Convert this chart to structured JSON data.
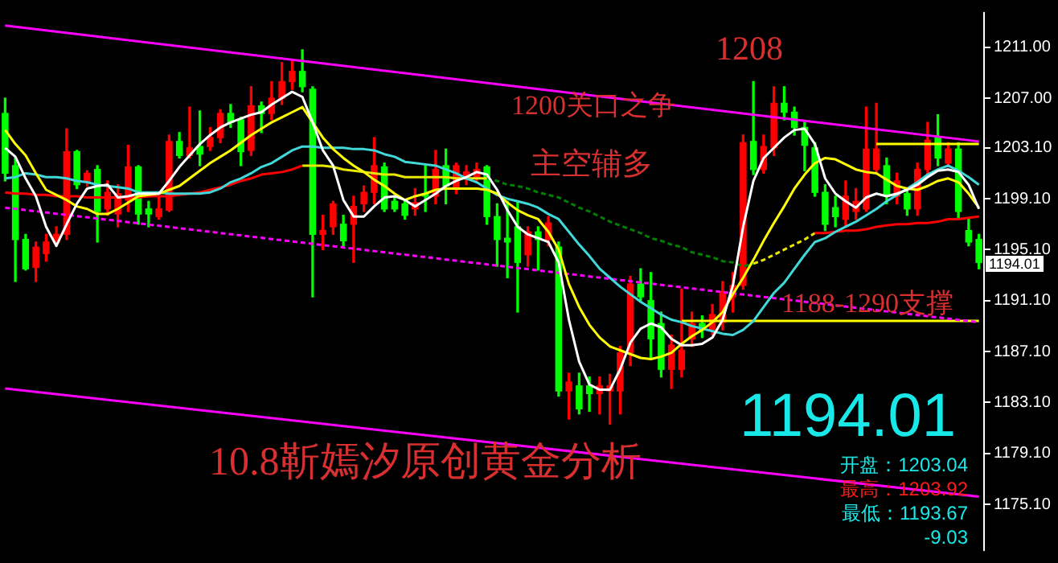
{
  "chart_data": {
    "type": "candlestick",
    "categories": [
      null,
      null,
      null,
      null,
      null,
      null,
      null,
      null,
      null,
      null,
      null,
      null,
      null,
      null,
      null,
      null,
      null,
      null,
      null,
      null,
      null,
      null,
      null,
      null,
      null,
      null,
      null,
      null,
      null,
      null,
      null,
      null,
      null,
      null,
      null,
      null,
      null,
      null,
      null,
      null,
      null,
      null,
      null,
      null,
      null,
      null,
      null,
      null,
      null,
      null,
      null,
      null,
      null,
      null,
      null,
      null,
      null,
      null,
      null,
      null,
      null,
      null,
      null,
      null,
      null,
      null,
      null,
      null,
      null,
      null,
      null,
      null,
      null,
      null,
      null,
      null,
      null,
      null,
      null,
      null,
      null,
      null,
      null,
      null,
      null,
      null,
      null,
      null,
      null,
      null,
      null,
      null,
      null,
      null,
      null,
      null
    ],
    "ohlc": [
      [
        1205.8,
        1207.0,
        1200.5,
        1201.1
      ],
      [
        1201.7,
        1202.3,
        1192.6,
        1195.9
      ],
      [
        1195.9,
        1196.3,
        1193.5,
        1193.6
      ],
      [
        1193.7,
        1195.7,
        1192.6,
        1195.3
      ],
      [
        1194.8,
        1196.3,
        1194.2,
        1195.7
      ],
      [
        1195.7,
        1196.9,
        1195.4,
        1196.3
      ],
      [
        1196.3,
        1204.6,
        1195.9,
        1202.8
      ],
      [
        1202.8,
        1202.9,
        1199.9,
        1200.2
      ],
      [
        1200.4,
        1201.3,
        1200.1,
        1201.1
      ],
      [
        1201.4,
        1201.7,
        1195.7,
        1198.1
      ],
      [
        1198.3,
        1200.5,
        1197.8,
        1199.6
      ],
      [
        1197.9,
        1200.2,
        1196.9,
        1199.5
      ],
      [
        1199.0,
        1203.3,
        1198.1,
        1201.6
      ],
      [
        1201.6,
        1201.7,
        1197.1,
        1197.9
      ],
      [
        1198.3,
        1198.9,
        1196.9,
        1197.9
      ],
      [
        1197.7,
        1199.3,
        1197.5,
        1198.3
      ],
      [
        1198.2,
        1204.1,
        1198.1,
        1203.6
      ],
      [
        1203.6,
        1204.3,
        1202.3,
        1202.5
      ],
      [
        1202.5,
        1206.3,
        1202.3,
        1203.1
      ],
      [
        1203.2,
        1206.0,
        1201.7,
        1202.6
      ],
      [
        1203.2,
        1204.7,
        1202.9,
        1203.9
      ],
      [
        1203.9,
        1206.1,
        1203.5,
        1205.8
      ],
      [
        1205.8,
        1206.5,
        1204.7,
        1205.1
      ],
      [
        1205.3,
        1205.5,
        1201.7,
        1202.8
      ],
      [
        1202.9,
        1207.9,
        1202.5,
        1206.4
      ],
      [
        1206.4,
        1206.7,
        1204.3,
        1205.8
      ],
      [
        1205.8,
        1208.3,
        1205.3,
        1207.0
      ],
      [
        1207.0,
        1209.8,
        1206.5,
        1208.3
      ],
      [
        1208.3,
        1209.9,
        1207.7,
        1209.1
      ],
      [
        1209.1,
        1210.8,
        1207.5,
        1207.9
      ],
      [
        1207.7,
        1207.9,
        1191.4,
        1196.3
      ],
      [
        1196.3,
        1197.8,
        1195.1,
        1196.6
      ],
      [
        1196.9,
        1198.9,
        1196.3,
        1198.7
      ],
      [
        1197.1,
        1197.8,
        1195.4,
        1195.8
      ],
      [
        1197.1,
        1199.3,
        1194.1,
        1198.5
      ],
      [
        1198.7,
        1200.1,
        1198.1,
        1199.6
      ],
      [
        1199.6,
        1203.9,
        1198.7,
        1201.7
      ],
      [
        1201.6,
        1201.9,
        1198.1,
        1198.3
      ],
      [
        1198.9,
        1199.3,
        1198.1,
        1198.3
      ],
      [
        1198.7,
        1199.0,
        1197.5,
        1197.8
      ],
      [
        1198.3,
        1199.9,
        1197.8,
        1198.8
      ],
      [
        1199.5,
        1201.7,
        1198.1,
        1199.3
      ],
      [
        1199.3,
        1202.9,
        1198.7,
        1201.4
      ],
      [
        1201.7,
        1203.0,
        1198.7,
        1200.1
      ],
      [
        1199.9,
        1201.9,
        1199.5,
        1201.7
      ],
      [
        1200.7,
        1201.7,
        1200.2,
        1201.2
      ],
      [
        1200.7,
        1201.9,
        1200.5,
        1201.4
      ],
      [
        1201.6,
        1201.7,
        1197.1,
        1197.7
      ],
      [
        1197.7,
        1198.7,
        1193.8,
        1195.9
      ],
      [
        1196.0,
        1198.9,
        1192.9,
        1195.7
      ],
      [
        1196.9,
        1198.9,
        1190.2,
        1194.1
      ],
      [
        1194.7,
        1196.9,
        1193.8,
        1196.5
      ],
      [
        1196.5,
        1196.9,
        1193.5,
        1195.9
      ],
      [
        1195.9,
        1197.7,
        1195.4,
        1197.2
      ],
      [
        1195.3,
        1195.7,
        1183.6,
        1184.0
      ],
      [
        1184.0,
        1185.4,
        1181.8,
        1184.7
      ],
      [
        1184.4,
        1185.4,
        1182.2,
        1182.6
      ],
      [
        1184.4,
        1185.1,
        1182.4,
        1183.8
      ],
      [
        1183.8,
        1185.1,
        1182.2,
        1184.4
      ],
      [
        1184.0,
        1185.3,
        1181.4,
        1184.4
      ],
      [
        1184.0,
        1187.5,
        1182.2,
        1187.0
      ],
      [
        1187.0,
        1193.0,
        1186.0,
        1192.4
      ],
      [
        1192.4,
        1193.6,
        1191.1,
        1191.4
      ],
      [
        1191.1,
        1193.3,
        1186.6,
        1188.1
      ],
      [
        1189.3,
        1190.2,
        1185.1,
        1185.7
      ],
      [
        1185.7,
        1188.4,
        1184.2,
        1187.6
      ],
      [
        1185.7,
        1192.0,
        1185.1,
        1187.2
      ],
      [
        1188.1,
        1190.2,
        1187.5,
        1189.3
      ],
      [
        1189.3,
        1189.9,
        1188.2,
        1188.8
      ],
      [
        1188.8,
        1190.8,
        1188.4,
        1190.0
      ],
      [
        1189.4,
        1192.6,
        1188.8,
        1191.8
      ],
      [
        1191.4,
        1193.3,
        1190.2,
        1192.3
      ],
      [
        1192.3,
        1204.1,
        1192.0,
        1203.5
      ],
      [
        1203.6,
        1208.3,
        1201.0,
        1201.4
      ],
      [
        1201.4,
        1204.1,
        1201.1,
        1203.2
      ],
      [
        1203.1,
        1207.9,
        1202.5,
        1206.6
      ],
      [
        1206.6,
        1207.9,
        1205.3,
        1205.9
      ],
      [
        1205.9,
        1206.3,
        1204.1,
        1204.7
      ],
      [
        1204.7,
        1205.1,
        1201.3,
        1203.3
      ],
      [
        1203.1,
        1203.5,
        1199.3,
        1199.6
      ],
      [
        1199.6,
        1200.2,
        1196.6,
        1197.1
      ],
      [
        1198.4,
        1199.3,
        1196.9,
        1197.7
      ],
      [
        1197.5,
        1200.5,
        1196.9,
        1199.3
      ],
      [
        1198.1,
        1199.9,
        1197.5,
        1198.9
      ],
      [
        1198.3,
        1206.3,
        1198.1,
        1203.0
      ],
      [
        1201.4,
        1206.6,
        1201.1,
        1203.0
      ],
      [
        1201.7,
        1202.3,
        1198.7,
        1199.3
      ],
      [
        1199.3,
        1201.1,
        1198.7,
        1200.5
      ],
      [
        1199.5,
        1199.9,
        1197.8,
        1198.3
      ],
      [
        1198.3,
        1201.9,
        1197.8,
        1201.4
      ],
      [
        1201.4,
        1205.1,
        1201.1,
        1203.7
      ],
      [
        1203.9,
        1205.7,
        1201.7,
        1202.3
      ],
      [
        1201.9,
        1203.5,
        1201.7,
        1203.0
      ],
      [
        1203.0,
        1203.5,
        1197.5,
        1198.1
      ],
      [
        1196.6,
        1197.5,
        1195.4,
        1195.7
      ],
      [
        1195.9,
        1196.3,
        1193.6,
        1194.1
      ]
    ],
    "colors": [
      "#00ff00",
      "#00ff00",
      "#00ff00",
      "#ff0000",
      "#ff0000",
      "#ff0000",
      "#ff0000",
      "#00ff00",
      "#ff0000",
      "#00ff00",
      "#ff0000",
      "#ff0000",
      "#ff0000",
      "#00ff00",
      "#00ff00",
      "#ff0000",
      "#ff0000",
      "#00ff00",
      "#ff0000",
      "#00ff00",
      "#ff0000",
      "#ff0000",
      "#00ff00",
      "#00ff00",
      "#ff0000",
      "#00ff00",
      "#ff0000",
      "#ff0000",
      "#ff0000",
      "#00ff00",
      "#00ff00",
      "#ff0000",
      "#ff0000",
      "#00ff00",
      "#ff0000",
      "#ff0000",
      "#ff0000",
      "#00ff00",
      "#00ff00",
      "#00ff00",
      "#ff0000",
      "#00ff00",
      "#ff0000",
      "#00ff00",
      "#ff0000",
      "#ff0000",
      "#ff0000",
      "#00ff00",
      "#00ff00",
      "#00ff00",
      "#00ff00",
      "#ff0000",
      "#00ff00",
      "#ff0000",
      "#00ff00",
      "#ff0000",
      "#00ff00",
      "#00ff00",
      "#ff0000",
      "#ff0000",
      "#ff0000",
      "#ff0000",
      "#00ff00",
      "#00ff00",
      "#00ff00",
      "#ff0000",
      "#ff0000",
      "#ff0000",
      "#00ff00",
      "#ff0000",
      "#ff0000",
      "#ff0000",
      "#ff0000",
      "#00ff00",
      "#ff0000",
      "#ff0000",
      "#00ff00",
      "#00ff00",
      "#00ff00",
      "#00ff00",
      "#00ff00",
      "#00ff00",
      "#ff0000",
      "#ff0000",
      "#ff0000",
      "#ff0000",
      "#00ff00",
      "#ff0000",
      "#00ff00",
      "#ff0000",
      "#ff0000",
      "#00ff00",
      "#ff0000",
      "#00ff00",
      "#00ff00",
      "#00ff00"
    ],
    "series": [
      {
        "type": "line",
        "color": "#ffffff",
        "values": [
          1203.1,
          1202.4,
          1200.7,
          1199.3,
          1196.9,
          1195.4,
          1197.1,
          1198.7,
          1199.9,
          1200.1,
          1200.2,
          1199.2,
          1199.3,
          1199.5,
          1199.5,
          1199.5,
          1200.5,
          1201.6,
          1202.5,
          1203.4,
          1204.1,
          1204.7,
          1205.1,
          1205.4,
          1205.7,
          1205.9,
          1206.5,
          1207.0,
          1207.5,
          1207.1,
          1205.1,
          1202.9,
          1201.7,
          1199.0,
          1197.7,
          1197.7,
          1198.5,
          1199.2,
          1199.3,
          1199.0,
          1198.5,
          1199.0,
          1199.5,
          1200.1,
          1200.5,
          1200.8,
          1201.2,
          1201.0,
          1199.8,
          1198.2,
          1196.9,
          1196.3,
          1196.0,
          1195.7,
          1194.1,
          1189.6,
          1186.3,
          1184.5,
          1184.1,
          1184.1,
          1185.7,
          1187.8,
          1188.9,
          1189.3,
          1189.0,
          1188.1,
          1187.6,
          1187.6,
          1187.7,
          1188.2,
          1189.6,
          1192.3,
          1196.9,
          1200.5,
          1202.3,
          1203.1,
          1203.9,
          1204.5,
          1204.6,
          1203.4,
          1200.7,
          1199.5,
          1198.9,
          1198.4,
          1199.2,
          1199.5,
          1199.3,
          1199.5,
          1199.8,
          1200.2,
          1200.8,
          1201.3,
          1201.4,
          1201.2,
          1200.2,
          1198.3
        ]
      },
      {
        "type": "line",
        "color": "#ffff00",
        "values": [
          1204.5,
          1203.4,
          1202.5,
          1201.1,
          1199.8,
          1199.4,
          1199.0,
          1198.5,
          1198.3,
          1197.9,
          1197.9,
          1198.3,
          1198.8,
          1199.3,
          1199.4,
          1199.5,
          1199.8,
          1200.1,
          1200.7,
          1201.3,
          1201.9,
          1202.4,
          1202.9,
          1203.5,
          1204.1,
          1204.6,
          1205.1,
          1205.5,
          1205.9,
          1206.3,
          1205.1,
          1203.9,
          1203.0,
          1202.3,
          1201.7,
          1201.2,
          1200.6,
          1200.1,
          1199.5,
          1199.0,
          1199.3,
          1199.5,
          1199.8,
          1199.9,
          1199.9,
          1199.9,
          1199.9,
          1199.8,
          1199.5,
          1198.8,
          1198.2,
          1197.8,
          1197.5,
          1196.5,
          1195.1,
          1192.4,
          1190.6,
          1189.2,
          1188.2,
          1187.5,
          1187.2,
          1186.9,
          1186.6,
          1186.5,
          1186.7,
          1187.0,
          1187.7,
          1188.3,
          1188.8,
          1189.4,
          1190.2,
          1191.6,
          1192.9,
          1194.3,
          1195.8,
          1197.2,
          1198.5,
          1199.9,
          1201.0,
          1201.9,
          1202.3,
          1202.2,
          1201.8,
          1201.4,
          1201.2,
          1201.1,
          1200.6,
          1200.1,
          1199.9,
          1199.8,
          1200.1,
          1200.5,
          1200.7,
          1200.4,
          1199.5,
          1198.4
        ]
      },
      {
        "type": "line",
        "color": "#40d8d8",
        "values": [
          1200.7,
          1200.8,
          1201.1,
          1201.0,
          1200.8,
          1200.8,
          1200.7,
          1200.5,
          1200.4,
          1200.2,
          1200.1,
          1200.0,
          1199.9,
          1199.6,
          1199.6,
          1199.6,
          1199.5,
          1199.5,
          1199.5,
          1199.5,
          1199.6,
          1199.9,
          1200.4,
          1200.7,
          1201.1,
          1201.6,
          1201.9,
          1202.4,
          1202.9,
          1203.2,
          1203.2,
          1203.1,
          1203.1,
          1203.1,
          1203.0,
          1203.0,
          1202.9,
          1202.6,
          1202.4,
          1202.0,
          1201.9,
          1201.8,
          1201.7,
          1201.4,
          1201.1,
          1200.7,
          1200.4,
          1199.9,
          1199.4,
          1199.1,
          1198.9,
          1198.7,
          1198.4,
          1197.9,
          1197.5,
          1196.5,
          1195.5,
          1194.6,
          1193.6,
          1192.9,
          1192.2,
          1191.6,
          1191.0,
          1190.5,
          1190.0,
          1189.6,
          1189.4,
          1189.1,
          1188.9,
          1188.7,
          1188.5,
          1188.4,
          1188.8,
          1189.5,
          1190.6,
          1191.7,
          1192.5,
          1193.6,
          1194.7,
          1195.7,
          1196.0,
          1196.5,
          1196.9,
          1197.3,
          1197.8,
          1198.3,
          1198.9,
          1199.4,
          1199.9,
          1200.4,
          1201.0,
          1201.4,
          1201.7,
          1201.3,
          1200.8,
          1200.2
        ]
      },
      {
        "type": "line",
        "color": "#ff0000",
        "values": [
          1199.6,
          1199.5,
          1199.5,
          1199.4,
          1199.4,
          1199.3,
          1199.3,
          1199.3,
          1199.2,
          1199.2,
          1199.2,
          1199.2,
          1199.2,
          1199.2,
          1199.3,
          1199.3,
          1199.3,
          1199.4,
          1199.5,
          1199.6,
          1199.8,
          1200.0,
          1200.2,
          1200.5,
          1200.7,
          1201.0,
          1201.1,
          1201.2,
          1201.4,
          1201.7,
          null,
          null,
          null,
          null,
          null,
          null,
          null,
          null,
          null,
          null,
          null,
          null,
          null,
          null,
          null,
          null,
          null,
          null,
          null,
          null,
          null,
          null,
          null,
          null,
          null,
          null,
          null,
          null,
          null,
          null,
          null,
          null,
          null,
          null,
          null,
          null,
          null,
          null,
          null,
          null,
          null,
          null,
          null,
          null,
          null,
          null,
          null,
          null,
          null,
          null,
          null,
          null,
          null,
          null,
          null,
          null,
          null,
          null,
          null,
          null,
          null,
          null,
          null,
          null,
          null,
          null
        ]
      },
      {
        "type": "line",
        "color": "#ff0000",
        "values": [
          null,
          null,
          null,
          null,
          null,
          null,
          null,
          null,
          null,
          null,
          null,
          null,
          null,
          null,
          null,
          null,
          null,
          null,
          null,
          null,
          null,
          null,
          null,
          null,
          null,
          null,
          null,
          null,
          null,
          null,
          null,
          null,
          null,
          null,
          null,
          null,
          null,
          null,
          null,
          null,
          null,
          null,
          null,
          null,
          null,
          null,
          null,
          null,
          null,
          null,
          null,
          null,
          null,
          null,
          null,
          null,
          null,
          null,
          null,
          null,
          null,
          null,
          null,
          null,
          null,
          null,
          null,
          null,
          null,
          null,
          null,
          null,
          null,
          null,
          null,
          null,
          null,
          null,
          null,
          1196.4,
          1196.4,
          1196.5,
          1196.6,
          1196.6,
          1196.7,
          1196.9,
          1197.0,
          1197.1,
          1197.1,
          1197.2,
          1197.2,
          1197.3,
          1197.5,
          1197.5,
          1197.6,
          1197.7
        ]
      },
      {
        "type": "line",
        "color": "#e8e800",
        "values": [
          null,
          null,
          null,
          null,
          null,
          null,
          null,
          null,
          null,
          null,
          null,
          null,
          null,
          null,
          null,
          null,
          null,
          null,
          null,
          null,
          null,
          null,
          null,
          null,
          null,
          null,
          null,
          null,
          null,
          1201.7,
          1201.7,
          1201.7,
          1201.6,
          1201.4,
          1201.3,
          1201.2,
          1201.1,
          1201.0,
          1201.0,
          1200.8,
          1200.8,
          1200.8,
          1200.8,
          1200.8,
          1200.7,
          1200.7,
          1200.7,
          1200.7,
          null,
          null,
          null,
          null,
          null,
          null,
          null,
          null,
          null,
          null,
          null,
          null,
          null,
          null,
          null,
          null,
          null,
          null,
          null,
          null,
          null,
          null,
          null,
          null,
          null,
          null,
          null,
          null,
          null,
          null,
          null,
          null,
          null,
          null,
          null,
          null,
          null,
          null,
          null,
          null,
          null,
          null,
          null,
          null,
          null,
          null,
          null,
          null
        ]
      },
      {
        "type": "line",
        "color": "#e8e800",
        "line_style": "dashed",
        "values": [
          null,
          null,
          null,
          null,
          null,
          null,
          null,
          null,
          null,
          null,
          null,
          null,
          null,
          null,
          null,
          null,
          null,
          null,
          null,
          null,
          null,
          null,
          null,
          null,
          null,
          null,
          null,
          null,
          null,
          null,
          null,
          null,
          null,
          null,
          null,
          null,
          null,
          null,
          null,
          null,
          null,
          null,
          null,
          null,
          null,
          null,
          null,
          null,
          null,
          null,
          null,
          null,
          null,
          null,
          null,
          null,
          null,
          null,
          null,
          null,
          null,
          null,
          null,
          null,
          null,
          null,
          null,
          null,
          null,
          null,
          null,
          null,
          null,
          1194.0,
          1194.3,
          1194.7,
          1195.1,
          1195.5,
          1195.9,
          1196.4,
          null,
          null,
          null,
          null,
          null,
          null,
          null,
          null,
          null,
          null,
          null,
          null,
          null,
          null,
          null,
          null
        ]
      },
      {
        "type": "line",
        "color": "#008000",
        "line_style": "dashed",
        "values": [
          null,
          null,
          null,
          null,
          null,
          null,
          null,
          null,
          null,
          null,
          null,
          null,
          null,
          null,
          null,
          null,
          null,
          null,
          null,
          null,
          null,
          null,
          null,
          null,
          null,
          null,
          null,
          null,
          null,
          null,
          null,
          null,
          null,
          null,
          null,
          null,
          null,
          null,
          null,
          null,
          null,
          null,
          null,
          null,
          null,
          null,
          null,
          1200.7,
          1200.5,
          1200.2,
          1200.1,
          1199.9,
          1199.6,
          1199.4,
          1199.2,
          1198.8,
          1198.4,
          1198.1,
          1197.7,
          1197.3,
          1197.0,
          1196.7,
          1196.4,
          1196.0,
          1195.8,
          1195.5,
          1195.3,
          1194.9,
          1194.7,
          1194.5,
          1194.2,
          1194.1,
          1193.8,
          1194.0,
          null,
          null,
          null,
          null,
          null,
          null,
          null,
          null,
          null,
          null,
          null,
          null,
          null,
          null,
          null,
          null,
          null,
          null,
          null,
          null,
          null,
          null
        ]
      },
      {
        "type": "line",
        "color": "#ff00ff",
        "values": [
          1212.7,
          null,
          null,
          null,
          null,
          null,
          null,
          null,
          null,
          null,
          null,
          null,
          null,
          null,
          null,
          null,
          null,
          null,
          null,
          null,
          null,
          null,
          null,
          null,
          null,
          null,
          null,
          null,
          null,
          null,
          null,
          null,
          null,
          null,
          null,
          null,
          null,
          null,
          null,
          null,
          null,
          null,
          null,
          null,
          null,
          null,
          null,
          null,
          null,
          null,
          null,
          null,
          null,
          null,
          null,
          null,
          null,
          null,
          null,
          null,
          null,
          null,
          null,
          null,
          null,
          null,
          null,
          null,
          null,
          null,
          null,
          null,
          null,
          null,
          null,
          null,
          null,
          null,
          null,
          null,
          null,
          null,
          null,
          null,
          null,
          null,
          null,
          null,
          null,
          null,
          null,
          null,
          null,
          null,
          null,
          1203.6
        ]
      },
      {
        "type": "line",
        "color": "#ff00ff",
        "line_style": "dashed",
        "values": [
          1198.4,
          null,
          null,
          null,
          null,
          null,
          null,
          null,
          null,
          null,
          null,
          null,
          null,
          null,
          null,
          null,
          null,
          null,
          null,
          null,
          null,
          null,
          null,
          null,
          null,
          null,
          null,
          null,
          null,
          null,
          null,
          null,
          null,
          null,
          null,
          null,
          null,
          null,
          null,
          null,
          null,
          null,
          null,
          null,
          null,
          null,
          null,
          null,
          null,
          null,
          null,
          null,
          null,
          null,
          null,
          null,
          null,
          null,
          null,
          null,
          null,
          null,
          null,
          null,
          null,
          null,
          null,
          null,
          null,
          null,
          null,
          null,
          null,
          null,
          null,
          null,
          null,
          null,
          null,
          null,
          null,
          null,
          null,
          null,
          null,
          null,
          null,
          null,
          null,
          null,
          null,
          null,
          null,
          null,
          null,
          1189.4
        ]
      },
      {
        "type": "line",
        "color": "#ff00ff",
        "values": [
          1184.2,
          null,
          null,
          null,
          null,
          null,
          null,
          null,
          null,
          null,
          null,
          null,
          null,
          null,
          null,
          null,
          null,
          null,
          null,
          null,
          null,
          null,
          null,
          null,
          null,
          null,
          null,
          null,
          null,
          null,
          null,
          null,
          null,
          null,
          null,
          null,
          null,
          null,
          null,
          null,
          null,
          null,
          null,
          null,
          null,
          null,
          null,
          null,
          null,
          null,
          null,
          null,
          null,
          null,
          null,
          null,
          null,
          null,
          null,
          null,
          null,
          null,
          null,
          null,
          null,
          null,
          null,
          null,
          null,
          null,
          null,
          null,
          null,
          null,
          null,
          null,
          null,
          null,
          null,
          null,
          null,
          null,
          null,
          null,
          null,
          null,
          null,
          null,
          null,
          null,
          null,
          null,
          null,
          null,
          null,
          1175.7
        ]
      },
      {
        "type": "line",
        "color": "#ffff00",
        "values": [
          null,
          null,
          null,
          null,
          null,
          null,
          null,
          null,
          null,
          null,
          null,
          null,
          null,
          null,
          null,
          null,
          null,
          null,
          null,
          null,
          null,
          null,
          null,
          null,
          null,
          null,
          null,
          null,
          null,
          null,
          null,
          null,
          null,
          null,
          null,
          null,
          null,
          null,
          null,
          null,
          null,
          null,
          null,
          null,
          null,
          null,
          null,
          null,
          null,
          null,
          null,
          null,
          null,
          null,
          null,
          null,
          null,
          null,
          null,
          null,
          null,
          null,
          null,
          null,
          null,
          null,
          null,
          null,
          null,
          null,
          null,
          null,
          null,
          null,
          null,
          null,
          null,
          null,
          null,
          null,
          null,
          null,
          null,
          null,
          null,
          1203.4,
          1203.4,
          1203.4,
          1203.4,
          1203.4,
          1203.4,
          1203.4,
          1203.4,
          1203.4,
          1203.4,
          1203.4
        ]
      },
      {
        "type": "line",
        "color": "#ffff00",
        "values": [
          null,
          null,
          null,
          null,
          null,
          null,
          null,
          null,
          null,
          null,
          null,
          null,
          null,
          null,
          null,
          null,
          null,
          null,
          null,
          null,
          null,
          null,
          null,
          null,
          null,
          null,
          null,
          null,
          null,
          null,
          null,
          null,
          null,
          null,
          null,
          null,
          null,
          null,
          null,
          null,
          null,
          null,
          null,
          null,
          null,
          null,
          null,
          null,
          null,
          null,
          null,
          null,
          null,
          null,
          null,
          null,
          null,
          null,
          null,
          null,
          null,
          null,
          null,
          null,
          null,
          null,
          1189.5,
          1189.5,
          1189.5,
          1189.5,
          1189.5,
          1189.5,
          1189.5,
          1189.5,
          1189.5,
          1189.5,
          1189.5,
          1189.5,
          1189.5,
          1189.5,
          1189.5,
          1189.5,
          1189.5,
          1189.5,
          1189.5,
          1189.5,
          1189.5,
          1189.5,
          1189.5,
          1189.5,
          1189.5,
          1189.5,
          1189.5,
          1189.5,
          1189.5,
          1189.5
        ]
      }
    ],
    "ylim": [
      1171.5,
      1213.7
    ],
    "yticks": [
      {
        "value": 1211,
        "label": "1211.00"
      },
      {
        "value": 1207,
        "label": "1207.00"
      },
      {
        "value": 1203.1,
        "label": "1203.10"
      },
      {
        "value": 1199.1,
        "label": "1199.10"
      },
      {
        "value": 1195.1,
        "label": "1195.10"
      },
      {
        "value": 1191.1,
        "label": "1191.10"
      },
      {
        "value": 1187.1,
        "label": "1187.10"
      },
      {
        "value": 1183.1,
        "label": "1183.10"
      },
      {
        "value": 1179.1,
        "label": "1179.10"
      },
      {
        "value": 1175.1,
        "label": "1175.10"
      }
    ],
    "tick_labels": "y",
    "grid": false,
    "legend": false,
    "annotations": [
      "1208",
      "1200关口之争",
      "主空辅多",
      "1188-1290支撑",
      "10.8靳嫣汐原创黄金分析",
      "1194.01",
      "开盘：1203.04",
      "最高：1203.92",
      "最低：1193.67",
      "-9.03",
      "1194.01"
    ]
  }
}
